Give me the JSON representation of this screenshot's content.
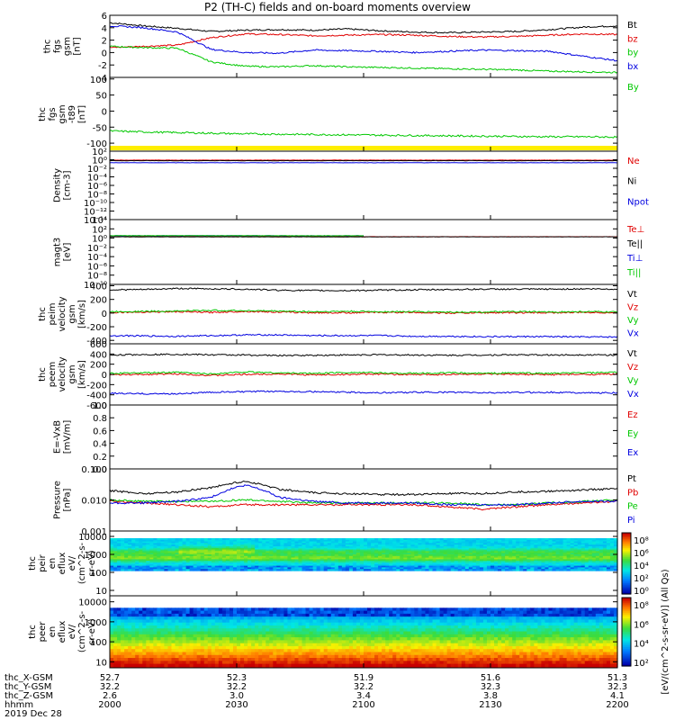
{
  "title": "P2 (TH-C) fields and on-board moments overview",
  "colors": {
    "black": "#000000",
    "red": "#e00000",
    "green": "#00c800",
    "blue": "#0000e0",
    "yellow": "#ffee00"
  },
  "chart_data": [
    {
      "type": "line",
      "panel": "fgs_gsm",
      "ylabel": [
        "thc",
        "fgs",
        "gsm",
        "[nT]"
      ],
      "ylim": [
        -4,
        6
      ],
      "yticks": [
        "6",
        "4",
        "2",
        "0",
        "-2",
        "-4"
      ],
      "ytick_values": [
        6,
        4,
        2,
        0,
        -2,
        -4
      ],
      "series": [
        {
          "name": "Bt",
          "color": "black",
          "values": [
            4.8,
            4.3,
            3.9,
            3.4,
            3.6,
            3.7,
            3.6,
            3.8,
            3.5,
            3.3,
            3.2,
            3.3,
            3.4,
            3.7,
            4.1,
            4.3
          ]
        },
        {
          "name": "bz",
          "color": "red",
          "values": [
            0.8,
            1.0,
            1.2,
            2.4,
            3.0,
            2.9,
            2.7,
            2.8,
            2.9,
            2.8,
            2.6,
            2.5,
            2.6,
            2.8,
            3.0,
            2.9
          ]
        },
        {
          "name": "by",
          "color": "green",
          "values": [
            1.0,
            0.8,
            0.7,
            -1.5,
            -2.2,
            -2.3,
            -2.1,
            -2.3,
            -2.4,
            -2.5,
            -2.6,
            -2.7,
            -2.8,
            -3.0,
            -3.1,
            -3.2
          ]
        },
        {
          "name": "bx",
          "color": "blue",
          "values": [
            4.3,
            4.0,
            3.3,
            0.5,
            0.0,
            -0.1,
            0.4,
            0.3,
            0.2,
            0.0,
            0.2,
            0.4,
            0.3,
            0.2,
            -0.6,
            -1.3
          ]
        }
      ]
    },
    {
      "type": "line",
      "panel": "fgs_gsm_t89",
      "ylabel": [
        "thc",
        "fgs",
        "gsm",
        "-t89",
        "[nT]"
      ],
      "ylim": [
        -125,
        105
      ],
      "yticks": [
        "100",
        "50",
        "0",
        "-50",
        "-100"
      ],
      "ytick_values": [
        100,
        50,
        0,
        -50,
        -100
      ],
      "series": [
        {
          "name": "By",
          "color": "green",
          "values": [
            -62,
            -65,
            -67,
            -69,
            -71,
            -72,
            -73,
            -74,
            -75,
            -76,
            -77,
            -78,
            -79,
            -80,
            -80,
            -81
          ]
        },
        {
          "name": "",
          "color": "black",
          "values": [
            -112,
            -114,
            -116,
            -117
          ]
        }
      ]
    },
    {
      "type": "line",
      "panel": "density",
      "ylabel": [
        "Density",
        "[cm-3]"
      ],
      "yscale": "log",
      "ylim_exp": [
        -14,
        2
      ],
      "yticks": [
        "10²",
        "10⁰",
        "10⁻²",
        "10⁻⁴",
        "10⁻⁶",
        "10⁻⁸",
        "10⁻¹⁰",
        "10⁻¹²",
        "10⁻¹⁴"
      ],
      "ytick_values": [
        2,
        0,
        -2,
        -4,
        -6,
        -8,
        -10,
        -12,
        -14
      ],
      "series": [
        {
          "name": "Ne",
          "color": "red",
          "values": [
            0.8,
            0.8,
            0.8,
            0.8,
            0.8,
            0.8,
            0.8,
            0.8,
            0.8,
            0.8,
            0.8,
            0.8,
            0.8,
            0.8,
            0.8,
            0.8
          ]
        },
        {
          "name": "Ni",
          "color": "black",
          "values": [
            0.6,
            0.6,
            0.6,
            0.6,
            0.6,
            0.6,
            0.6,
            0.6,
            0.6,
            0.6,
            0.6,
            0.6,
            0.6,
            0.6,
            0.6,
            0.6
          ]
        },
        {
          "name": "Npot",
          "color": "blue",
          "values": [
            0.2,
            0.2,
            0.2,
            0.2,
            0.2,
            0.2,
            0.2,
            0.2,
            0.2,
            0.2,
            0.2,
            0.2,
            0.2,
            0.2,
            0.2,
            0.2
          ]
        }
      ]
    },
    {
      "type": "line",
      "panel": "temperature",
      "ylabel": [
        "magt3",
        "[eV]"
      ],
      "yscale": "log",
      "ylim_exp": [
        -10,
        4
      ],
      "yticks": [
        "10⁴",
        "10²",
        "10⁰",
        "10⁻²",
        "10⁻⁴",
        "10⁻⁶",
        "10⁻⁸",
        "10⁻¹⁰"
      ],
      "ytick_values": [
        4,
        2,
        0,
        -2,
        -4,
        -6,
        -8,
        -10
      ],
      "series": [
        {
          "name": "Te⊥",
          "color": "red",
          "values": [
            2.0,
            2.0,
            2.0,
            2.0,
            2.0,
            2.0,
            2.0,
            2.0,
            2.0,
            2.0,
            2.0,
            2.0,
            2.0,
            2.0,
            2.0,
            2.0
          ]
        },
        {
          "name": "Te||",
          "color": "black",
          "values": [
            1.9,
            1.9,
            1.9,
            1.9,
            1.9,
            1.9,
            1.9,
            1.9,
            1.9,
            1.9,
            1.9,
            1.9,
            1.9,
            1.9,
            1.9,
            1.9
          ]
        },
        {
          "name": "Ti⊥",
          "color": "blue",
          "values": [
            3.2,
            3.3,
            3.4,
            3.4,
            3.3,
            3.2,
            3.3
          ]
        },
        {
          "name": "Ti||",
          "color": "green",
          "values": [
            3.3,
            3.4,
            3.4,
            3.3,
            3.3,
            3.2,
            3.3
          ]
        }
      ]
    },
    {
      "type": "line",
      "panel": "peim_velocity",
      "ylabel": [
        "thc",
        "peim",
        "velocity",
        "gsm",
        "[km/s]"
      ],
      "ylim": [
        -450,
        420
      ],
      "yticks": [
        "400",
        "200",
        "0",
        "-200",
        "-400"
      ],
      "ytick_values": [
        400,
        200,
        0,
        -200,
        -400
      ],
      "series": [
        {
          "name": "Vt",
          "color": "black",
          "values": [
            340,
            345,
            360,
            355,
            350,
            335,
            330,
            330,
            335,
            340,
            345,
            350,
            350,
            350,
            355,
            350
          ]
        },
        {
          "name": "Vz",
          "color": "red",
          "values": [
            10,
            15,
            20,
            10,
            25,
            15,
            5,
            5,
            10,
            10,
            0,
            5,
            5,
            5,
            10,
            5
          ]
        },
        {
          "name": "Vy",
          "color": "green",
          "values": [
            20,
            25,
            30,
            40,
            35,
            30,
            20,
            25,
            20,
            20,
            15,
            15,
            20,
            15,
            20,
            15
          ]
        },
        {
          "name": "Vx",
          "color": "blue",
          "values": [
            -330,
            -335,
            -340,
            -330,
            -320,
            -320,
            -330,
            -330,
            -330,
            -340,
            -340,
            -345,
            -345,
            -345,
            -350,
            -350
          ]
        }
      ]
    },
    {
      "type": "line",
      "panel": "peem_velocity",
      "ylabel": [
        "thc",
        "peem",
        "velocity",
        "gsm",
        "[km/s]"
      ],
      "ylim": [
        -600,
        600
      ],
      "yticks": [
        "600",
        "400",
        "200",
        "0",
        "-200",
        "-400",
        "-600"
      ],
      "ytick_values": [
        600,
        400,
        200,
        0,
        -200,
        -400,
        -600
      ],
      "series": [
        {
          "name": "Vt",
          "color": "black",
          "values": [
            380,
            390,
            395,
            385,
            380,
            370,
            375,
            380,
            385,
            380,
            375,
            380,
            385,
            380,
            385,
            380
          ]
        },
        {
          "name": "Vz",
          "color": "red",
          "values": [
            -10,
            0,
            10,
            -20,
            0,
            10,
            -10,
            0,
            5,
            -5,
            0,
            5,
            0,
            -5,
            0,
            5
          ]
        },
        {
          "name": "Vy",
          "color": "green",
          "values": [
            20,
            30,
            40,
            10,
            50,
            30,
            20,
            40,
            30,
            20,
            30,
            20,
            30,
            20,
            30,
            40
          ]
        },
        {
          "name": "Vx",
          "color": "blue",
          "values": [
            -370,
            -380,
            -380,
            -350,
            -340,
            -330,
            -340,
            -350,
            -360,
            -350,
            -350,
            -360,
            -355,
            -350,
            -360,
            -365
          ]
        }
      ]
    },
    {
      "type": "line",
      "panel": "efield",
      "ylabel": [
        "E=-VxB",
        "[mV/m]"
      ],
      "ylim": [
        0,
        1.0
      ],
      "yticks": [
        "1.0",
        "0.8",
        "0.6",
        "0.4",
        "0.2",
        "0.0"
      ],
      "ytick_values": [
        1.0,
        0.8,
        0.6,
        0.4,
        0.2,
        0.0
      ],
      "series": [
        {
          "name": "Ez",
          "color": "red",
          "values": []
        },
        {
          "name": "Ey",
          "color": "green",
          "values": []
        },
        {
          "name": "Ex",
          "color": "blue",
          "values": []
        }
      ]
    },
    {
      "type": "line",
      "panel": "pressure",
      "ylabel": [
        "Pressure",
        "[nPa]"
      ],
      "yscale": "log",
      "ylim_exp": [
        -3,
        -1
      ],
      "yticks": [
        "0.100",
        "0.010",
        "0.001"
      ],
      "ytick_values": [
        -1,
        -2,
        -3
      ],
      "series": [
        {
          "name": "Pt",
          "color": "black",
          "values": [
            0.02,
            0.016,
            0.018,
            0.025,
            0.04,
            0.022,
            0.017,
            0.016,
            0.015,
            0.015,
            0.016,
            0.016,
            0.018,
            0.019,
            0.021,
            0.023
          ]
        },
        {
          "name": "Pb",
          "color": "red",
          "values": [
            0.009,
            0.008,
            0.007,
            0.006,
            0.007,
            0.007,
            0.007,
            0.007,
            0.007,
            0.007,
            0.006,
            0.005,
            0.006,
            0.007,
            0.008,
            0.009
          ]
        },
        {
          "name": "Pe",
          "color": "green",
          "values": [
            0.01,
            0.009,
            0.009,
            0.009,
            0.01,
            0.009,
            0.008,
            0.008,
            0.008,
            0.008,
            0.008,
            0.007,
            0.007,
            0.008,
            0.009,
            0.01
          ]
        },
        {
          "name": "Pi",
          "color": "blue",
          "values": [
            0.008,
            0.008,
            0.009,
            0.012,
            0.03,
            0.012,
            0.009,
            0.008,
            0.008,
            0.008,
            0.007,
            0.007,
            0.007,
            0.008,
            0.009,
            0.009
          ]
        }
      ]
    },
    {
      "type": "heatmap",
      "panel": "peir_eflux",
      "ylabel": [
        "thc",
        "peir",
        "en",
        "eflux",
        "eV/",
        "(cm^2-s-",
        "sr-eV)"
      ],
      "yscale": "log",
      "ylim_exp": [
        0.7,
        4.3
      ],
      "yticks": [
        "10000",
        "1000",
        "100",
        "10"
      ],
      "ytick_values": [
        4,
        3,
        2,
        1
      ],
      "data_band_exp": [
        2.1,
        3.9
      ],
      "colorbar": {
        "ticks": [
          "10⁸",
          "10⁶",
          "10⁴",
          "10²",
          "10⁰"
        ],
        "label": "eV/(cm^2-s-sr-eV)"
      }
    },
    {
      "type": "heatmap",
      "panel": "peer_eflux",
      "ylabel": [
        "thc",
        "peer",
        "en",
        "eflux",
        "eV/",
        "(cm^2-s-",
        "sr-eV)"
      ],
      "yscale": "log",
      "ylim_exp": [
        0.7,
        4.3
      ],
      "yticks": [
        "10000",
        "1000",
        "100",
        "10"
      ],
      "ytick_values": [
        4,
        3,
        2,
        1
      ],
      "data_band_exp": [
        0.75,
        3.7
      ],
      "colorbar": {
        "ticks": [
          "10⁸",
          "10⁶",
          "10⁴",
          "10²"
        ],
        "label": "eV/(cm^2-s-sr-eV)"
      }
    }
  ],
  "colorbar_caption": "[eV/(cm^2-s-sr-eV)] (All Qs)",
  "xaxis": {
    "labels": [
      "thc_X-GSM",
      "thc_Y-GSM",
      "thc_Z-GSM",
      "hhmm",
      "2019 Dec 28"
    ],
    "rows": [
      [
        "52.7",
        "52.3",
        "51.9",
        "51.6",
        "51.3"
      ],
      [
        "32.2",
        "32.2",
        "32.2",
        "32.3",
        "32.3"
      ],
      [
        "2.6",
        "3.0",
        "3.4",
        "3.8",
        "4.1"
      ],
      [
        "2000",
        "2030",
        "2100",
        "2130",
        "2200"
      ]
    ]
  }
}
